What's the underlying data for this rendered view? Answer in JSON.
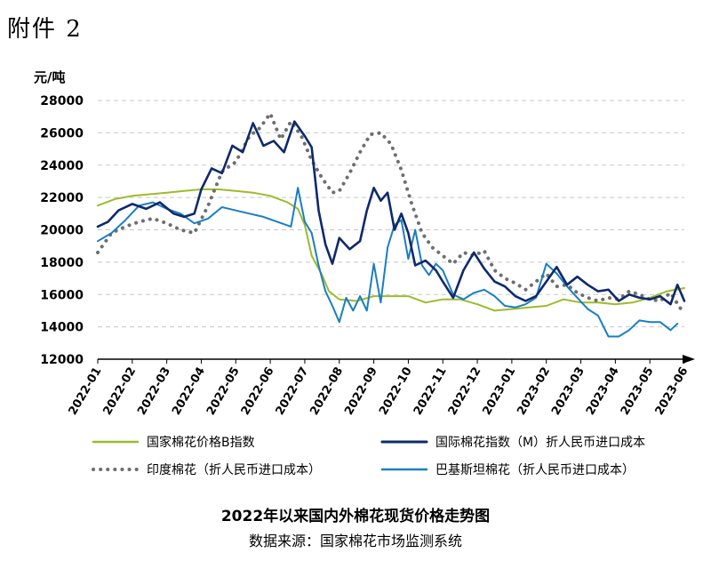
{
  "attachment_label": "附件 2",
  "caption": "2022年以来国内外棉花现货价格走势图",
  "source": "数据来源：国家棉花市场监测系统",
  "chart_data": {
    "type": "line",
    "ylabel": "元/吨",
    "ylim": [
      12000,
      28000
    ],
    "yticks": [
      12000,
      14000,
      16000,
      18000,
      20000,
      22000,
      24000,
      26000,
      28000
    ],
    "ytick_labels": [
      "12000",
      "14000",
      "16000",
      "18000",
      "20000",
      "22000",
      "24000",
      "26000",
      "28000"
    ],
    "x_labels": [
      "2022-01",
      "2022-02",
      "2022-03",
      "2022-04",
      "2022-05",
      "2022-06",
      "2022-07",
      "2022-08",
      "2022-09",
      "2022-10",
      "2022-11",
      "2022-12",
      "2023-01",
      "2023-02",
      "2023-03",
      "2023-04",
      "2023-05",
      "2023-06"
    ],
    "grid": "horizontal dashed",
    "legend_position": "bottom",
    "series": [
      {
        "name": "国家棉花价格B指数",
        "color": "#9dbb2b",
        "style": "solid",
        "x": [
          0,
          0.5,
          1,
          1.5,
          2,
          2.5,
          3,
          3.5,
          4,
          4.5,
          5,
          5.5,
          5.8,
          6,
          6.2,
          6.5,
          6.7,
          7,
          7.5,
          8,
          8.5,
          9,
          9.5,
          10,
          10.5,
          11,
          11.5,
          12,
          12.5,
          13,
          13.5,
          14,
          14.5,
          15,
          15.5,
          16,
          16.5,
          17
        ],
        "values": [
          21500,
          21900,
          22100,
          22200,
          22300,
          22400,
          22500,
          22500,
          22400,
          22300,
          22100,
          21700,
          21300,
          20300,
          18400,
          17200,
          16200,
          15700,
          15600,
          15900,
          15900,
          15900,
          15500,
          15700,
          15700,
          15400,
          15000,
          15100,
          15200,
          15300,
          15700,
          15500,
          15500,
          15400,
          15500,
          15800,
          16200,
          16400
        ]
      },
      {
        "name": "国际棉花指数（M）折人民币进口成本",
        "color": "#0f2a6b",
        "style": "solid",
        "x": [
          0,
          0.3,
          0.6,
          1,
          1.4,
          1.8,
          2.2,
          2.5,
          2.8,
          3,
          3.3,
          3.6,
          3.9,
          4.2,
          4.5,
          4.8,
          5.1,
          5.4,
          5.7,
          6,
          6.2,
          6.4,
          6.6,
          6.8,
          7,
          7.3,
          7.6,
          7.8,
          8,
          8.2,
          8.4,
          8.6,
          8.8,
          9,
          9.2,
          9.5,
          9.8,
          10,
          10.3,
          10.6,
          10.9,
          11.2,
          11.5,
          11.8,
          12.1,
          12.4,
          12.7,
          13,
          13.3,
          13.6,
          13.9,
          14.2,
          14.5,
          14.8,
          15.1,
          15.4,
          15.7,
          16,
          16.3,
          16.6,
          16.8,
          17
        ],
        "values": [
          20200,
          20500,
          21200,
          21600,
          21300,
          21700,
          21000,
          20800,
          21000,
          22500,
          23800,
          23500,
          25200,
          24800,
          26600,
          25200,
          25500,
          24800,
          26700,
          25800,
          25100,
          21200,
          19100,
          17900,
          19500,
          18800,
          19300,
          21200,
          22600,
          21800,
          22300,
          20000,
          21000,
          19800,
          17800,
          18100,
          17500,
          16800,
          15800,
          17500,
          18600,
          17600,
          16800,
          16500,
          15900,
          15600,
          15900,
          16800,
          17700,
          16600,
          17100,
          16600,
          16200,
          16300,
          15600,
          16000,
          15800,
          15700,
          15900,
          15400,
          16600,
          15600
        ]
      },
      {
        "name": "印度棉花（折人民币进口成本）",
        "color": "#6e6e6e",
        "style": "dotted",
        "x": [
          0,
          0.4,
          0.8,
          1.2,
          1.6,
          2,
          2.4,
          2.8,
          3.2,
          3.6,
          4,
          4.4,
          4.7,
          5,
          5.3,
          5.6,
          5.9,
          6.2,
          6.5,
          6.8,
          7,
          7.3,
          7.6,
          7.9,
          8.2,
          8.5,
          8.8,
          9.1,
          9.4,
          9.7,
          10,
          10.3,
          10.6,
          10.9,
          11.2,
          11.5,
          11.8,
          12.1,
          12.4,
          12.7,
          13,
          13.3,
          13.6,
          13.9,
          14.2,
          14.5,
          14.8,
          15.1,
          15.4,
          15.7,
          16,
          16.3,
          16.6,
          16.9
        ],
        "values": [
          18600,
          19800,
          20200,
          20500,
          20700,
          20400,
          20000,
          19800,
          21500,
          23600,
          24200,
          25800,
          26300,
          27200,
          25600,
          26700,
          25800,
          24300,
          23200,
          22300,
          22400,
          23500,
          24800,
          25900,
          26000,
          25300,
          23700,
          21600,
          19800,
          18900,
          18400,
          17900,
          18600,
          18400,
          18700,
          17500,
          17000,
          16700,
          16300,
          16800,
          17300,
          16500,
          16600,
          16100,
          15800,
          15600,
          15800,
          15700,
          16200,
          16000,
          15700,
          15600,
          16100,
          15100
        ]
      },
      {
        "name": "巴基斯坦棉花（折人民币进口成本）",
        "color": "#1a7ec2",
        "style": "solid",
        "x": [
          0,
          0.4,
          0.8,
          1.2,
          1.6,
          2,
          2.4,
          2.8,
          3.2,
          3.6,
          4,
          4.4,
          4.8,
          5.2,
          5.6,
          5.8,
          6,
          6.2,
          6.4,
          6.6,
          6.8,
          7,
          7.2,
          7.4,
          7.6,
          7.8,
          8,
          8.2,
          8.4,
          8.6,
          8.8,
          9,
          9.2,
          9.4,
          9.6,
          9.8,
          10,
          10.3,
          10.6,
          10.9,
          11.2,
          11.5,
          11.8,
          12.1,
          12.4,
          12.7,
          13,
          13.3,
          13.6,
          13.9,
          14.2,
          14.5,
          14.8,
          15.1,
          15.4,
          15.7,
          16,
          16.3,
          16.6,
          16.8
        ],
        "values": [
          19300,
          19800,
          20600,
          21500,
          21700,
          21300,
          21000,
          20400,
          20700,
          21400,
          21200,
          21000,
          20800,
          20500,
          20200,
          22600,
          20500,
          19800,
          17800,
          16200,
          15300,
          14300,
          15800,
          15000,
          15900,
          15000,
          17900,
          15500,
          18900,
          20300,
          20600,
          18200,
          20000,
          17800,
          17200,
          17900,
          17500,
          16000,
          15700,
          16100,
          16300,
          15900,
          15300,
          15200,
          15400,
          15800,
          17900,
          17300,
          16500,
          15800,
          15100,
          14700,
          13400,
          13400,
          13800,
          14400,
          14300,
          14300,
          13800,
          14200
        ]
      }
    ]
  }
}
